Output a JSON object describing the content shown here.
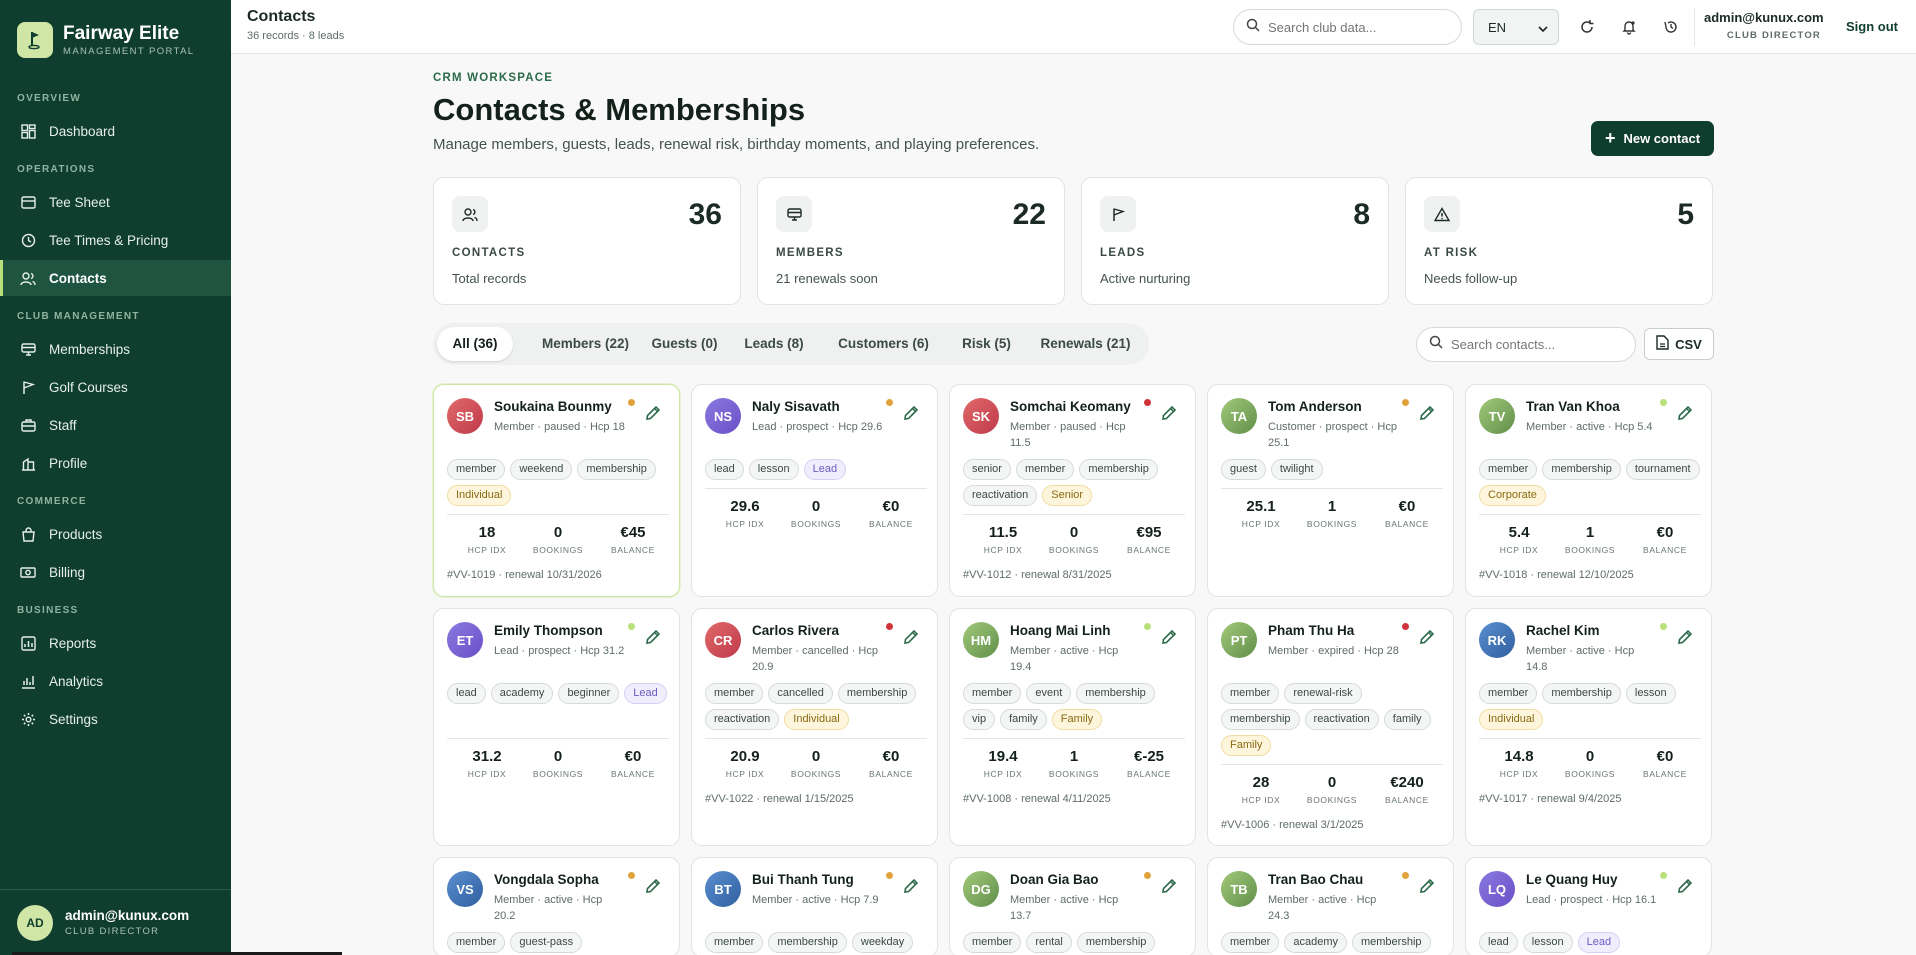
{
  "brand": {
    "name": "Fairway Elite",
    "subtitle": "MANAGEMENT PORTAL",
    "logo_icon": "golf-flag-icon"
  },
  "nav": {
    "sections": [
      {
        "label": "OVERVIEW",
        "items": [
          {
            "label": "Dashboard",
            "icon": "dashboard-icon"
          }
        ]
      },
      {
        "label": "OPERATIONS",
        "items": [
          {
            "label": "Tee Sheet",
            "icon": "list-icon"
          },
          {
            "label": "Tee Times & Pricing",
            "icon": "clock-icon"
          },
          {
            "label": "Contacts",
            "icon": "users-icon",
            "active": true
          }
        ]
      },
      {
        "label": "CLUB MANAGEMENT",
        "items": [
          {
            "label": "Memberships",
            "icon": "card-icon"
          },
          {
            "label": "Golf Courses",
            "icon": "flag-icon"
          },
          {
            "label": "Staff",
            "icon": "briefcase-icon"
          },
          {
            "label": "Profile",
            "icon": "building-icon"
          }
        ]
      },
      {
        "label": "COMMERCE",
        "items": [
          {
            "label": "Products",
            "icon": "bag-icon"
          },
          {
            "label": "Billing",
            "icon": "money-icon"
          }
        ]
      },
      {
        "label": "BUSINESS",
        "items": [
          {
            "label": "Reports",
            "icon": "report-icon"
          },
          {
            "label": "Analytics",
            "icon": "analytics-icon"
          },
          {
            "label": "Settings",
            "icon": "gear-icon"
          }
        ]
      }
    ]
  },
  "sidebar_user": {
    "initials": "AD",
    "email": "admin@kunux.com",
    "role": "CLUB DIRECTOR"
  },
  "topbar": {
    "title": "Contacts",
    "subtitle": "36 records · 8 leads",
    "search_placeholder": "Search club data...",
    "language": "EN",
    "user_email": "admin@kunux.com",
    "user_role": "CLUB DIRECTOR",
    "signout_label": "Sign out"
  },
  "page": {
    "eyebrow": "CRM WORKSPACE",
    "title": "Contacts & Memberships",
    "description": "Manage members, guests, leads, renewal risk, birthday moments, and playing preferences.",
    "new_button": "New contact"
  },
  "stats": [
    {
      "label": "CONTACTS",
      "value": "36",
      "sub": "Total records",
      "icon": "users-icon"
    },
    {
      "label": "MEMBERS",
      "value": "22",
      "sub": "21 renewals soon",
      "icon": "card-icon"
    },
    {
      "label": "LEADS",
      "value": "8",
      "sub": "Active nurturing",
      "icon": "flag-icon"
    },
    {
      "label": "AT RISK",
      "value": "5",
      "sub": "Needs follow-up",
      "icon": "warning-icon"
    }
  ],
  "tabs": [
    {
      "label": "All (36)",
      "active": true
    },
    {
      "label": "Members (22)"
    },
    {
      "label": "Guests (0)"
    },
    {
      "label": "Leads (8)"
    },
    {
      "label": "Customers (6)"
    },
    {
      "label": "Risk (5)"
    },
    {
      "label": "Renewals (21)"
    }
  ],
  "contacts_search_placeholder": "Search contacts...",
  "csv_label": "CSV",
  "stat_labels": {
    "hcp": "HCP IDX",
    "bookings": "BOOKINGS",
    "balance": "BALANCE"
  },
  "colors": {
    "brand_dark": "#0f3d2e",
    "accent": "#b9e07a",
    "dot_orange": "#e0a23a",
    "dot_red": "#d0343a",
    "dot_green": "#b9e07a"
  },
  "contacts": [
    {
      "initials": "SB",
      "name": "Soukaina Bounmy",
      "meta": "Member · paused · Hcp 18",
      "dot": "orange",
      "avatar": "red",
      "tags": [
        {
          "t": "member"
        },
        {
          "t": "weekend"
        },
        {
          "t": "membership"
        },
        {
          "t": "Individual",
          "s": "yellow"
        }
      ],
      "hcp": "18",
      "bookings": "0",
      "balance": "€45",
      "footer": "#VV-1019 · renewal 10/31/2026",
      "highlight": true
    },
    {
      "initials": "NS",
      "name": "Naly Sisavath",
      "meta": "Lead · prospect · Hcp 29.6",
      "dot": "orange",
      "avatar": "purple",
      "tags": [
        {
          "t": "lead"
        },
        {
          "t": "lesson"
        },
        {
          "t": "Lead",
          "s": "purple"
        }
      ],
      "hcp": "29.6",
      "bookings": "0",
      "balance": "€0",
      "footer": ""
    },
    {
      "initials": "SK",
      "name": "Somchai Keomany",
      "meta": "Member · paused · Hcp 11.5",
      "dot": "red",
      "avatar": "red",
      "tags": [
        {
          "t": "senior"
        },
        {
          "t": "member"
        },
        {
          "t": "membership"
        },
        {
          "t": "reactivation"
        },
        {
          "t": "Senior",
          "s": "yellow"
        }
      ],
      "hcp": "11.5",
      "bookings": "0",
      "balance": "€95",
      "footer": "#VV-1012 · renewal 8/31/2025"
    },
    {
      "initials": "TA",
      "name": "Tom Anderson",
      "meta": "Customer · prospect · Hcp 25.1",
      "dot": "orange",
      "avatar": "green",
      "tags": [
        {
          "t": "guest"
        },
        {
          "t": "twilight"
        }
      ],
      "hcp": "25.1",
      "bookings": "1",
      "balance": "€0",
      "footer": ""
    },
    {
      "initials": "TV",
      "name": "Tran Van Khoa",
      "meta": "Member · active · Hcp 5.4",
      "dot": "green",
      "avatar": "green",
      "tags": [
        {
          "t": "member"
        },
        {
          "t": "membership"
        },
        {
          "t": "tournament"
        },
        {
          "t": "Corporate",
          "s": "yellow"
        }
      ],
      "hcp": "5.4",
      "bookings": "1",
      "balance": "€0",
      "footer": "#VV-1018 · renewal 12/10/2025"
    },
    {
      "initials": "ET",
      "name": "Emily Thompson",
      "meta": "Lead · prospect · Hcp 31.2",
      "dot": "green",
      "avatar": "purple",
      "tags": [
        {
          "t": "lead"
        },
        {
          "t": "academy"
        },
        {
          "t": "beginner"
        },
        {
          "t": "Lead",
          "s": "purple"
        }
      ],
      "hcp": "31.2",
      "bookings": "0",
      "balance": "€0",
      "footer": ""
    },
    {
      "initials": "CR",
      "name": "Carlos Rivera",
      "meta": "Member · cancelled · Hcp 20.9",
      "dot": "red",
      "avatar": "red",
      "tags": [
        {
          "t": "member"
        },
        {
          "t": "cancelled"
        },
        {
          "t": "membership"
        },
        {
          "t": "reactivation"
        },
        {
          "t": "Individual",
          "s": "yellow"
        }
      ],
      "hcp": "20.9",
      "bookings": "0",
      "balance": "€0",
      "footer": "#VV-1022 · renewal 1/15/2025"
    },
    {
      "initials": "HM",
      "name": "Hoang Mai Linh",
      "meta": "Member · active · Hcp 19.4",
      "dot": "green",
      "avatar": "green",
      "tags": [
        {
          "t": "member"
        },
        {
          "t": "event"
        },
        {
          "t": "membership"
        },
        {
          "t": "vip"
        },
        {
          "t": "family"
        },
        {
          "t": "Family",
          "s": "yellow"
        }
      ],
      "hcp": "19.4",
      "bookings": "1",
      "balance": "€-25",
      "footer": "#VV-1008 · renewal 4/11/2025"
    },
    {
      "initials": "PT",
      "name": "Pham Thu Ha",
      "meta": "Member · expired · Hcp 28",
      "dot": "red",
      "avatar": "green",
      "tags": [
        {
          "t": "member"
        },
        {
          "t": "renewal-risk"
        },
        {
          "t": "membership"
        },
        {
          "t": "reactivation"
        },
        {
          "t": "family"
        },
        {
          "t": "Family",
          "s": "yellow"
        }
      ],
      "hcp": "28",
      "bookings": "0",
      "balance": "€240",
      "footer": "#VV-1006 · renewal 3/1/2025"
    },
    {
      "initials": "RK",
      "name": "Rachel Kim",
      "meta": "Member · active · Hcp 14.8",
      "dot": "green",
      "avatar": "blue",
      "tags": [
        {
          "t": "member"
        },
        {
          "t": "membership"
        },
        {
          "t": "lesson"
        },
        {
          "t": "Individual",
          "s": "yellow"
        }
      ],
      "hcp": "14.8",
      "bookings": "0",
      "balance": "€0",
      "footer": "#VV-1017 · renewal 9/4/2025"
    },
    {
      "initials": "VS",
      "name": "Vongdala Sopha",
      "meta": "Member · active · Hcp 20.2",
      "dot": "orange",
      "avatar": "blue",
      "tags": [
        {
          "t": "member"
        },
        {
          "t": "guest-pass"
        }
      ],
      "hcp": "",
      "bookings": "",
      "balance": "",
      "footer": ""
    },
    {
      "initials": "BT",
      "name": "Bui Thanh Tung",
      "meta": "Member · active · Hcp 7.9",
      "dot": "orange",
      "avatar": "blue",
      "tags": [
        {
          "t": "member"
        },
        {
          "t": "membership"
        },
        {
          "t": "weekday"
        }
      ],
      "hcp": "",
      "bookings": "",
      "balance": "",
      "footer": ""
    },
    {
      "initials": "DG",
      "name": "Doan Gia Bao",
      "meta": "Member · active · Hcp 13.7",
      "dot": "orange",
      "avatar": "green",
      "tags": [
        {
          "t": "member"
        },
        {
          "t": "rental"
        },
        {
          "t": "membership"
        }
      ],
      "hcp": "",
      "bookings": "",
      "balance": "",
      "footer": ""
    },
    {
      "initials": "TB",
      "name": "Tran Bao Chau",
      "meta": "Member · active · Hcp 24.3",
      "dot": "orange",
      "avatar": "green",
      "tags": [
        {
          "t": "member"
        },
        {
          "t": "academy"
        },
        {
          "t": "membership"
        }
      ],
      "hcp": "",
      "bookings": "",
      "balance": "",
      "footer": ""
    },
    {
      "initials": "LQ",
      "name": "Le Quang Huy",
      "meta": "Lead · prospect · Hcp 16.1",
      "dot": "green",
      "avatar": "purple",
      "tags": [
        {
          "t": "lead"
        },
        {
          "t": "lesson"
        },
        {
          "t": "Lead",
          "s": "purple"
        }
      ],
      "hcp": "",
      "bookings": "",
      "balance": "",
      "footer": ""
    }
  ]
}
